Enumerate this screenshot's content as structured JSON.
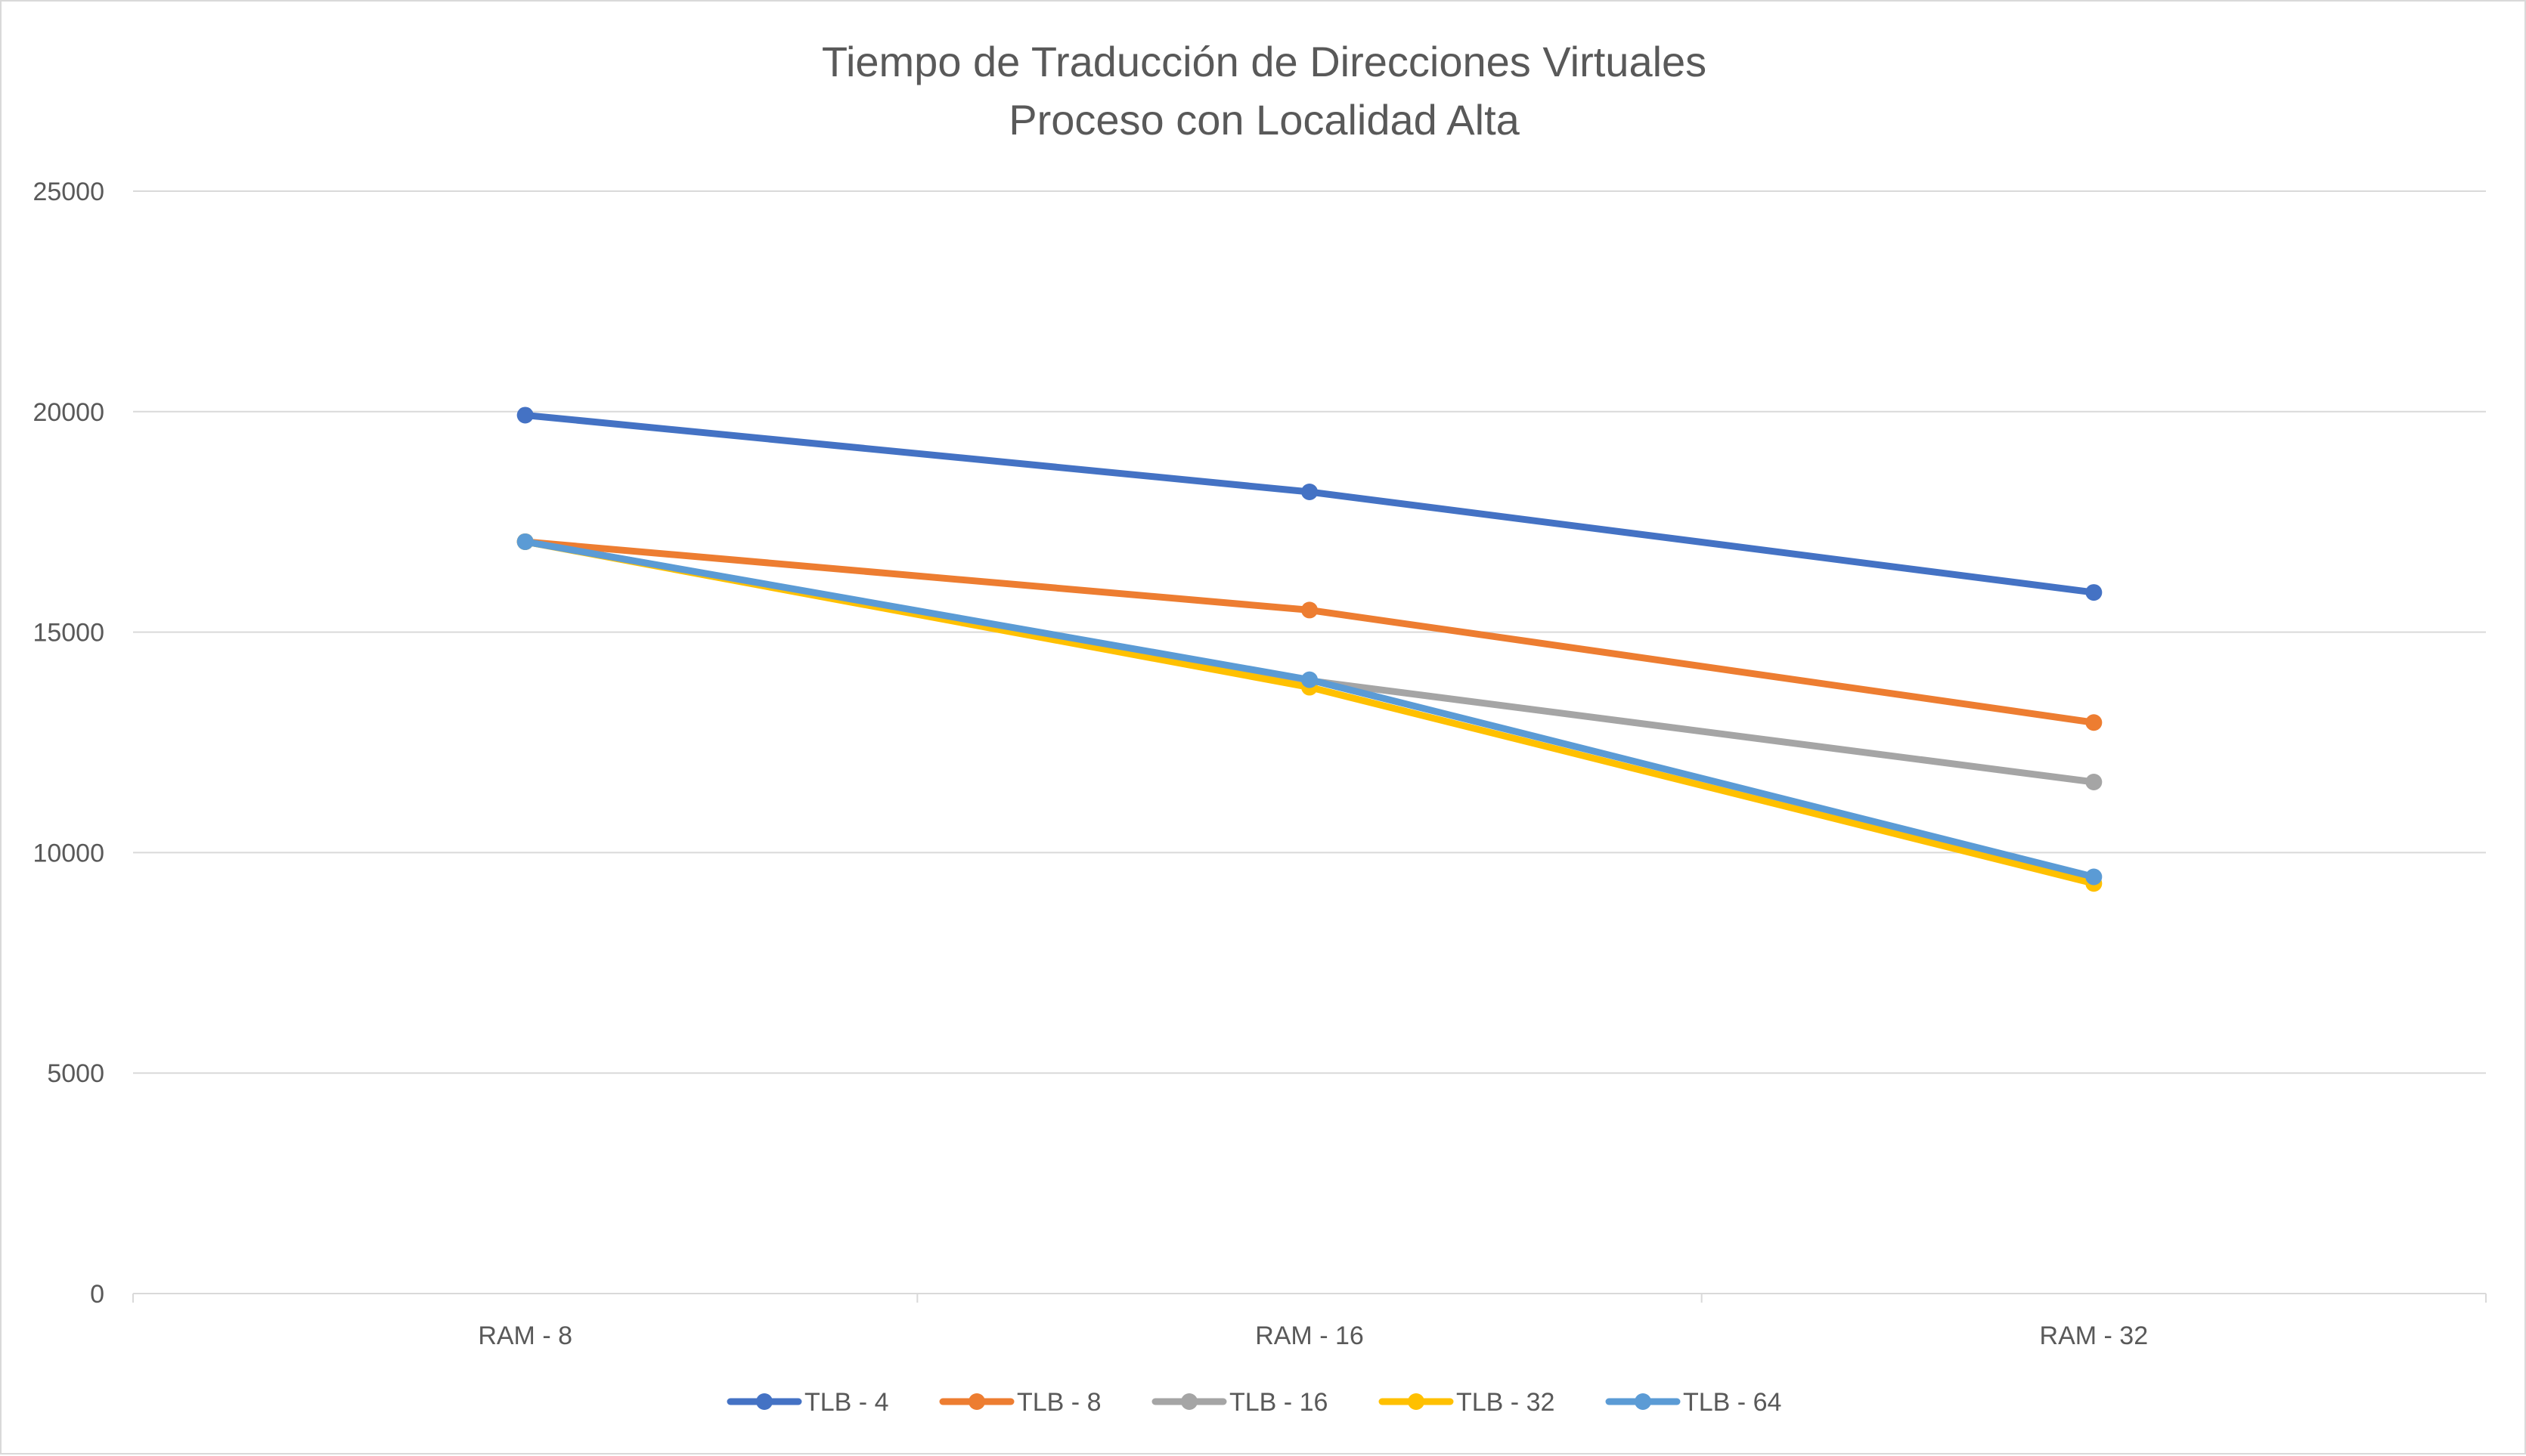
{
  "chart_data": {
    "type": "line",
    "title": [
      "Tiempo de Traducción de Direcciones Virtuales",
      "Proceso con Localidad Alta"
    ],
    "xlabel": "",
    "ylabel": "",
    "categories": [
      "RAM - 8",
      "RAM - 16",
      "RAM - 32"
    ],
    "ylim": [
      0,
      25000
    ],
    "yticks": [
      0,
      5000,
      10000,
      15000,
      20000,
      25000
    ],
    "grid": true,
    "legend_position": "bottom",
    "series": [
      {
        "name": "TLB - 4",
        "color": "#4472c4",
        "values": [
          19920,
          18180,
          15900
        ]
      },
      {
        "name": "TLB - 8",
        "color": "#ed7d31",
        "values": [
          17050,
          15500,
          12950
        ]
      },
      {
        "name": "TLB - 16",
        "color": "#a5a5a5",
        "values": [
          17050,
          13900,
          11600
        ]
      },
      {
        "name": "TLB - 32",
        "color": "#ffc000",
        "values": [
          17050,
          13750,
          9300
        ]
      },
      {
        "name": "TLB - 64",
        "color": "#5b9bd5",
        "values": [
          17050,
          13920,
          9450
        ]
      }
    ]
  }
}
